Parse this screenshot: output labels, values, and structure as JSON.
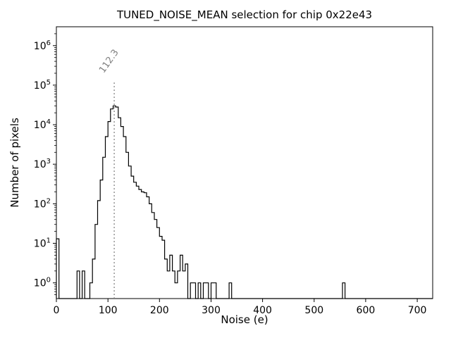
{
  "chart_data": {
    "type": "bar",
    "subtype": "step-histogram",
    "title": "TUNED_NOISE_MEAN selection for chip 0x22e43",
    "xlabel": "Noise (e)",
    "ylabel": "Number of pixels",
    "xlim": [
      0,
      730
    ],
    "ylim_log": [
      0.4,
      3000000
    ],
    "x_ticks": [
      0,
      100,
      200,
      300,
      400,
      500,
      600,
      700
    ],
    "y_tick_exponents": [
      0,
      1,
      2,
      3,
      4,
      5,
      6
    ],
    "grid": false,
    "legend": "none",
    "bin_width": 5,
    "nonzero_bins": [
      [
        0,
        13
      ],
      [
        40,
        2
      ],
      [
        50,
        2
      ],
      [
        65,
        1
      ],
      [
        70,
        4
      ],
      [
        75,
        30
      ],
      [
        80,
        120
      ],
      [
        85,
        400
      ],
      [
        90,
        1500
      ],
      [
        95,
        5000
      ],
      [
        100,
        12000
      ],
      [
        105,
        25000
      ],
      [
        110,
        30000
      ],
      [
        115,
        28000
      ],
      [
        120,
        15000
      ],
      [
        125,
        9000
      ],
      [
        130,
        5000
      ],
      [
        135,
        2000
      ],
      [
        140,
        900
      ],
      [
        145,
        500
      ],
      [
        150,
        350
      ],
      [
        155,
        280
      ],
      [
        160,
        230
      ],
      [
        165,
        200
      ],
      [
        170,
        190
      ],
      [
        175,
        150
      ],
      [
        180,
        100
      ],
      [
        185,
        60
      ],
      [
        190,
        40
      ],
      [
        195,
        25
      ],
      [
        200,
        15
      ],
      [
        205,
        12
      ],
      [
        210,
        4
      ],
      [
        215,
        2
      ],
      [
        220,
        5
      ],
      [
        225,
        2
      ],
      [
        230,
        1
      ],
      [
        235,
        2
      ],
      [
        240,
        5
      ],
      [
        245,
        2
      ],
      [
        250,
        3
      ],
      [
        260,
        1
      ],
      [
        265,
        1
      ],
      [
        275,
        1
      ],
      [
        285,
        1
      ],
      [
        290,
        1
      ],
      [
        300,
        1
      ],
      [
        305,
        1
      ],
      [
        335,
        1
      ],
      [
        555,
        1
      ]
    ],
    "line_color": "#000000",
    "annotation": {
      "x": 112.3,
      "label": "112.3",
      "color": "#7f7f7f",
      "line_style": "dotted",
      "line_top": 130000
    }
  }
}
